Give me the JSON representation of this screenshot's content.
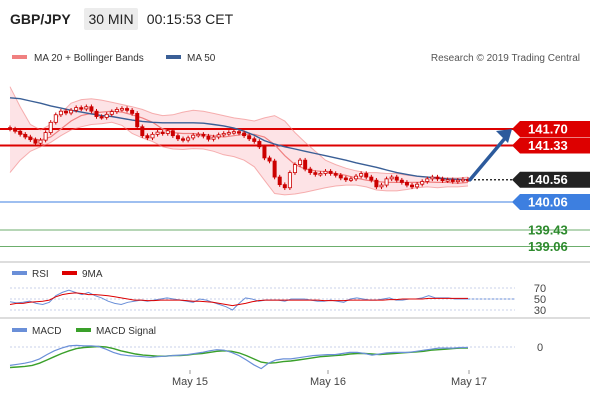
{
  "header": {
    "symbol": "GBP/JPY",
    "timeframe": "30 MIN",
    "clock": "00:15:53 CET"
  },
  "legend": {
    "bollinger": "MA 20 + Bollinger Bands",
    "ma50": "MA 50",
    "credit": "Research © 2019 Trading Central",
    "rsi": "RSI",
    "rsi_ma": "9MA",
    "macd": "MACD",
    "macd_signal": "MACD Signal"
  },
  "colors": {
    "candle": "#cc0000",
    "bollinger": "#f08080",
    "band_fill": "#fde3e6",
    "ma50": "#3a5f96",
    "resistance": "#dd0000",
    "support": "#3d7fe0",
    "target": "#2e8b2e",
    "price_tag": "#222222",
    "arrow": "#2c5a9c",
    "rsi": "#6a8fd8",
    "rsi_ma": "#dd0000",
    "macd": "#6a8fd8",
    "macd_signal": "#3aa02a"
  },
  "chart_data": [
    {
      "type": "candlestick",
      "title": "GBP/JPY",
      "ylim": [
        138.8,
        143.2
      ],
      "levels": [
        {
          "value": 141.7,
          "label": "141.70",
          "kind": "resistance"
        },
        {
          "value": 141.33,
          "label": "141.33",
          "kind": "resistance"
        },
        {
          "value": 140.56,
          "label": "140.56",
          "kind": "last"
        },
        {
          "value": 140.06,
          "label": "140.06",
          "kind": "support"
        },
        {
          "value": 139.43,
          "label": "139.43",
          "kind": "target"
        },
        {
          "value": 139.06,
          "label": "139.06",
          "kind": "target"
        }
      ],
      "close": [
        141.7,
        141.65,
        141.58,
        141.52,
        141.46,
        141.38,
        141.45,
        141.62,
        141.85,
        142.02,
        142.1,
        142.06,
        142.12,
        142.18,
        142.15,
        142.2,
        142.1,
        141.98,
        141.96,
        142.03,
        142.09,
        142.14,
        142.16,
        142.12,
        142.05,
        141.75,
        141.55,
        141.5,
        141.58,
        141.63,
        141.6,
        141.66,
        141.55,
        141.48,
        141.45,
        141.5,
        141.56,
        141.58,
        141.54,
        141.47,
        141.52,
        141.57,
        141.6,
        141.62,
        141.64,
        141.61,
        141.55,
        141.48,
        141.42,
        141.3,
        141.05,
        140.98,
        140.62,
        140.45,
        140.38,
        140.72,
        140.9,
        141.0,
        140.8,
        140.72,
        140.68,
        140.7,
        140.75,
        140.7,
        140.66,
        140.6,
        140.56,
        140.58,
        140.64,
        140.7,
        140.62,
        140.55,
        140.4,
        140.44,
        140.58,
        140.62,
        140.55,
        140.5,
        140.44,
        140.4,
        140.46,
        140.52,
        140.58,
        140.62,
        140.58,
        140.54,
        140.56,
        140.52,
        140.55,
        140.57,
        140.56
      ],
      "bb_mid": [
        141.72,
        141.62,
        141.5,
        141.45,
        141.52,
        141.7,
        141.88,
        142.0,
        142.05,
        142.08,
        142.1,
        142.08,
        142.02,
        141.95,
        141.85,
        141.7,
        141.62,
        141.6,
        141.6,
        141.58,
        141.55,
        141.52,
        141.55,
        141.58,
        141.58,
        141.52,
        141.35,
        141.1,
        140.9,
        140.8,
        140.76,
        140.74,
        140.7,
        140.66,
        140.6,
        140.55,
        140.52,
        140.5,
        140.5,
        140.5,
        140.5,
        140.51,
        140.5,
        140.5,
        140.48,
        140.5
      ],
      "bb_upper": [
        142.65,
        142.2,
        141.8,
        141.68,
        141.8,
        142.05,
        142.28,
        142.36,
        142.38,
        142.35,
        142.3,
        142.25,
        142.2,
        142.14,
        142.05,
        142.0,
        142.02,
        142.08,
        142.12,
        142.1,
        142.05,
        142.0,
        141.95,
        141.92,
        141.88,
        141.95,
        142.0,
        141.88,
        141.62,
        141.4,
        141.2,
        141.0,
        140.9,
        140.82,
        140.76,
        140.72,
        140.72,
        140.7,
        140.7,
        140.66,
        140.64,
        140.62,
        140.62,
        140.6,
        140.6,
        140.62
      ],
      "bb_lower": [
        140.72,
        141.0,
        141.2,
        141.3,
        141.4,
        141.55,
        141.68,
        141.75,
        141.8,
        141.82,
        141.85,
        141.78,
        141.6,
        141.5,
        141.42,
        141.3,
        141.25,
        141.24,
        141.26,
        141.25,
        141.2,
        141.12,
        141.08,
        141.0,
        140.85,
        140.55,
        140.25,
        140.22,
        140.24,
        140.28,
        140.33,
        140.38,
        140.42,
        140.44,
        140.44,
        140.4,
        140.33,
        140.31,
        140.31,
        140.34,
        140.38,
        140.4,
        140.38,
        140.4,
        140.4,
        140.42
      ],
      "ma50": [
        142.4,
        142.38,
        142.33,
        142.28,
        142.22,
        142.17,
        142.12,
        142.08,
        142.04,
        142.0,
        141.98,
        141.94,
        141.9,
        141.87,
        141.85,
        141.84,
        141.84,
        141.84,
        141.84,
        141.83,
        141.8,
        141.77,
        141.72,
        141.65,
        141.56,
        141.44,
        141.36,
        141.3,
        141.25,
        141.2,
        141.15,
        141.1,
        141.05,
        141.0,
        140.94,
        140.89,
        140.84,
        140.78,
        140.72,
        140.68,
        140.64,
        140.62,
        140.6,
        140.58,
        140.57,
        140.56
      ]
    },
    {
      "type": "line",
      "title": "RSI",
      "ylim": [
        20,
        80
      ],
      "ticks": [
        "70",
        "50",
        "30"
      ],
      "series": [
        {
          "name": "RSI",
          "values": [
            45,
            43,
            44,
            46,
            42,
            40,
            44,
            56,
            62,
            66,
            62,
            58,
            62,
            56,
            52,
            46,
            42,
            40,
            44,
            46,
            48,
            46,
            48,
            50,
            52,
            50,
            48,
            46,
            44,
            50,
            48,
            44,
            40,
            36,
            30,
            42,
            52,
            50,
            46,
            48,
            48,
            48,
            46,
            50,
            50,
            50,
            48,
            46,
            46,
            48,
            46,
            44,
            50,
            52,
            50,
            48,
            48,
            50,
            52,
            48,
            48,
            50,
            50,
            52,
            56,
            52,
            52,
            52,
            50,
            50,
            50
          ]
        },
        {
          "name": "9MA",
          "values": [
            40,
            42,
            42,
            44,
            45,
            46,
            48,
            54,
            58,
            60,
            61,
            60,
            58,
            58,
            57,
            56,
            54,
            52,
            50,
            48,
            48,
            47,
            47,
            48,
            48,
            48,
            48,
            47,
            46,
            46,
            45,
            44,
            42,
            40,
            38,
            40,
            42,
            45,
            47,
            48,
            48,
            48,
            48,
            48,
            48,
            48,
            48,
            48,
            47,
            47,
            47,
            47,
            48,
            48,
            48,
            48,
            48,
            48,
            49,
            49,
            50,
            50,
            50,
            50,
            51,
            51,
            51,
            51,
            51,
            51,
            51
          ]
        }
      ]
    },
    {
      "type": "line",
      "title": "MACD",
      "ticks": [
        "0"
      ],
      "xlabels": [
        "May 15",
        "May 16",
        "May 17"
      ],
      "series": [
        {
          "name": "MACD",
          "values": [
            -0.34,
            -0.32,
            -0.3,
            -0.27,
            -0.22,
            -0.14,
            -0.07,
            -0.02,
            0.02,
            0.03,
            0.02,
            0.02,
            0.01,
            -0.04,
            -0.1,
            -0.14,
            -0.16,
            -0.17,
            -0.18,
            -0.19,
            -0.18,
            -0.17,
            -0.16,
            -0.15,
            -0.14,
            -0.12,
            -0.1,
            -0.07,
            -0.05,
            -0.06,
            -0.1,
            -0.16,
            -0.24,
            -0.33,
            -0.4,
            -0.3,
            -0.24,
            -0.22,
            -0.22,
            -0.2,
            -0.18,
            -0.16,
            -0.15,
            -0.14,
            -0.14,
            -0.12,
            -0.1,
            -0.1,
            -0.12,
            -0.15,
            -0.13,
            -0.11,
            -0.1,
            -0.1,
            -0.1,
            -0.08,
            -0.06,
            -0.04,
            -0.02,
            -0.02,
            -0.02,
            -0.01,
            -0.01
          ]
        },
        {
          "name": "MACD Signal",
          "values": [
            -0.38,
            -0.37,
            -0.36,
            -0.34,
            -0.3,
            -0.24,
            -0.18,
            -0.12,
            -0.07,
            -0.03,
            -0.01,
            0.0,
            0.01,
            0.0,
            -0.03,
            -0.07,
            -0.1,
            -0.13,
            -0.15,
            -0.16,
            -0.17,
            -0.17,
            -0.16,
            -0.16,
            -0.15,
            -0.13,
            -0.12,
            -0.1,
            -0.08,
            -0.07,
            -0.08,
            -0.11,
            -0.16,
            -0.22,
            -0.28,
            -0.3,
            -0.29,
            -0.27,
            -0.26,
            -0.24,
            -0.22,
            -0.2,
            -0.18,
            -0.17,
            -0.16,
            -0.15,
            -0.13,
            -0.12,
            -0.12,
            -0.13,
            -0.14,
            -0.13,
            -0.12,
            -0.11,
            -0.1,
            -0.09,
            -0.08,
            -0.06,
            -0.05,
            -0.04,
            -0.03,
            -0.02,
            -0.02
          ]
        }
      ]
    }
  ]
}
